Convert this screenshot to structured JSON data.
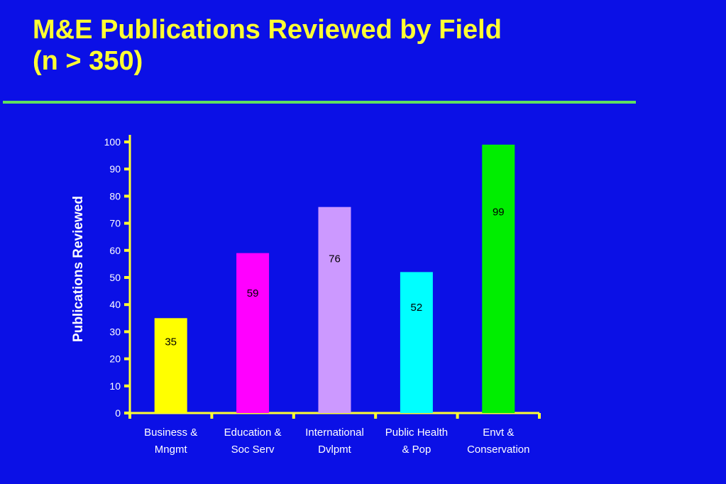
{
  "title": {
    "line1": "M&E Publications Reviewed by Field",
    "line2": "(n > 350)"
  },
  "colors": {
    "background": "#0b10e6",
    "title": "#ffff33",
    "divider": "#5fe05f",
    "axis": "#ffff33",
    "text": "#ffffff",
    "data_label": "#000000"
  },
  "chart_data": {
    "type": "bar",
    "title": "M&E Publications Reviewed by Field (n > 350)",
    "xlabel": "",
    "ylabel": "Publications Reviewed",
    "ylim": [
      0,
      100
    ],
    "yticks": [
      0,
      10,
      20,
      30,
      40,
      50,
      60,
      70,
      80,
      90,
      100
    ],
    "categories": [
      [
        "Business &",
        "Mngmt"
      ],
      [
        "Education &",
        "Soc Serv"
      ],
      [
        "International",
        "Dvlpmt"
      ],
      [
        "Public Health",
        "& Pop"
      ],
      [
        "Envt &",
        "Conservation"
      ]
    ],
    "values": [
      35,
      59,
      76,
      52,
      99
    ],
    "data_labels": [
      "35",
      "59",
      "76",
      "52",
      "99"
    ],
    "bar_colors": [
      "#ffff00",
      "#ff00ff",
      "#cc99ff",
      "#00ffff",
      "#00ee00"
    ],
    "grid": false,
    "legend": "none"
  }
}
